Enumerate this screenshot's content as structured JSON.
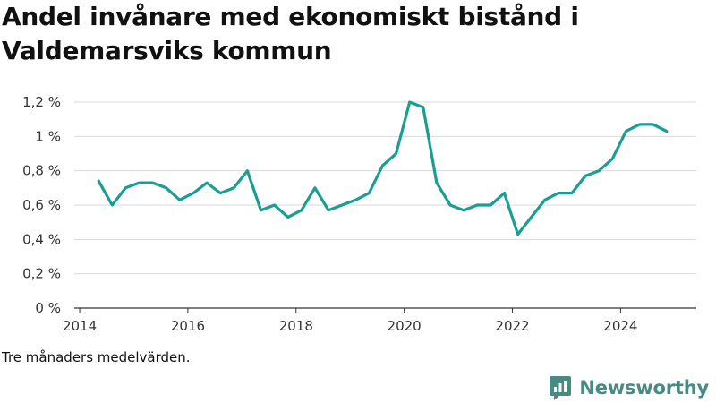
{
  "header": {
    "title_line1": "Andel invånare med ekonomiskt bistånd i",
    "title_line2": "Valdemarsviks kommun"
  },
  "footer": {
    "note": "Tre månaders medelvärden.",
    "brand": "Newsworthy"
  },
  "colors": {
    "line": "#1a9e93",
    "grid": "#d9d9d9",
    "axis": "#333333",
    "brand": "#4a8a84"
  },
  "chart_data": {
    "type": "line",
    "title": "Andel invånare med ekonomiskt bistånd i Valdemarsviks kommun",
    "xlabel": "",
    "ylabel": "",
    "xlim": [
      2013.9,
      2025.4
    ],
    "ylim": [
      0,
      1.2
    ],
    "yticks": [
      0,
      0.2,
      0.4,
      0.6,
      0.8,
      1.0,
      1.2
    ],
    "ytick_labels": [
      "0 %",
      "0,2 %",
      "0,4 %",
      "0,6 %",
      "0,8 %",
      "1 %",
      "1,2 %"
    ],
    "xticks": [
      2014,
      2016,
      2018,
      2020,
      2022,
      2024
    ],
    "xtick_labels": [
      "2014",
      "2016",
      "2018",
      "2020",
      "2022",
      "2024"
    ],
    "grid": true,
    "series": [
      {
        "x": [
          2014.35,
          2014.6,
          2014.85,
          2015.1,
          2015.35,
          2015.6,
          2015.85,
          2016.1,
          2016.35,
          2016.6,
          2016.85,
          2017.1,
          2017.35,
          2017.6,
          2017.85,
          2018.1,
          2018.35,
          2018.6,
          2018.85,
          2019.1,
          2019.35,
          2019.6,
          2019.85,
          2020.1,
          2020.35,
          2020.6,
          2020.85,
          2021.1,
          2021.35,
          2021.6,
          2021.85,
          2022.1,
          2022.35,
          2022.6,
          2022.85,
          2023.1,
          2023.35,
          2023.6,
          2023.85,
          2024.1,
          2024.35,
          2024.6,
          2024.85
        ],
        "values": [
          0.74,
          0.6,
          0.7,
          0.73,
          0.73,
          0.7,
          0.63,
          0.67,
          0.73,
          0.67,
          0.7,
          0.8,
          0.57,
          0.6,
          0.53,
          0.57,
          0.7,
          0.57,
          0.6,
          0.63,
          0.67,
          0.83,
          0.9,
          1.2,
          1.17,
          0.73,
          0.6,
          0.57,
          0.6,
          0.6,
          0.67,
          0.43,
          0.53,
          0.63,
          0.67,
          0.67,
          0.77,
          0.8,
          0.87,
          1.03,
          1.07,
          1.07,
          1.03
        ]
      }
    ]
  }
}
